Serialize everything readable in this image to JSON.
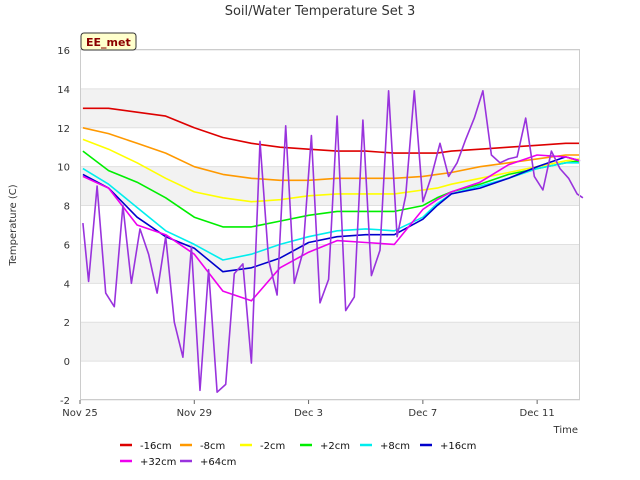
{
  "chart_data": {
    "type": "line",
    "title": "Soil/Water Temperature Set 3",
    "xlabel": "Time",
    "ylabel": "Temperature (C)",
    "badge": "EE_met",
    "x_ticks": [
      "Nov 25",
      "Nov 29",
      "Dec 3",
      "Dec 7",
      "Dec 11"
    ],
    "xlim": [
      "Nov 25",
      "Dec 13 12:00"
    ],
    "ylim": [
      -2,
      16
    ],
    "y_ticks": [
      -2,
      0,
      2,
      4,
      6,
      8,
      10,
      12,
      14,
      16
    ],
    "grid": "horizontal alternating bands",
    "legend_position": "bottom",
    "series": [
      {
        "name": "-16cm",
        "color": "#dd0000",
        "x": [
          0.1,
          1,
          2,
          3,
          4,
          5,
          6,
          7,
          8,
          9,
          10,
          11,
          12,
          12.5,
          13,
          14,
          15,
          16,
          17,
          17.5
        ],
        "y": [
          13.0,
          13.0,
          12.8,
          12.6,
          12.0,
          11.5,
          11.2,
          11.0,
          10.9,
          10.8,
          10.8,
          10.7,
          10.7,
          10.7,
          10.8,
          10.9,
          11.0,
          11.1,
          11.2,
          11.2
        ]
      },
      {
        "name": "-8cm",
        "color": "#ff9900",
        "x": [
          0.1,
          1,
          2,
          3,
          4,
          5,
          6,
          7,
          8,
          9,
          10,
          11,
          12,
          12.5,
          13,
          14,
          15,
          16,
          17,
          17.5
        ],
        "y": [
          12.0,
          11.7,
          11.2,
          10.7,
          10.0,
          9.6,
          9.4,
          9.3,
          9.3,
          9.4,
          9.4,
          9.4,
          9.5,
          9.6,
          9.7,
          10.0,
          10.2,
          10.4,
          10.6,
          10.6
        ]
      },
      {
        "name": "-2cm",
        "color": "#ffff00",
        "x": [
          0.1,
          1,
          2,
          3,
          4,
          5,
          6,
          7,
          8,
          9,
          10,
          11,
          12,
          12.5,
          13,
          14,
          15,
          16,
          17,
          17.5
        ],
        "y": [
          11.4,
          10.9,
          10.2,
          9.4,
          8.7,
          8.4,
          8.2,
          8.3,
          8.5,
          8.6,
          8.6,
          8.6,
          8.8,
          8.9,
          9.1,
          9.4,
          9.7,
          10.0,
          10.3,
          10.4
        ]
      },
      {
        "name": "+2cm",
        "color": "#00ee00",
        "x": [
          0.1,
          1,
          2,
          3,
          4,
          5,
          6,
          7,
          8,
          9,
          10,
          11,
          12,
          12.5,
          13,
          14,
          15,
          16,
          17,
          17.5
        ],
        "y": [
          10.8,
          9.8,
          9.2,
          8.4,
          7.4,
          6.9,
          6.9,
          7.2,
          7.5,
          7.7,
          7.7,
          7.7,
          8.0,
          8.4,
          8.7,
          9.1,
          9.6,
          9.9,
          10.2,
          10.3
        ]
      },
      {
        "name": "+8cm",
        "color": "#00eeee",
        "x": [
          0.1,
          1,
          2,
          3,
          4,
          5,
          6,
          7,
          8,
          9,
          10,
          11,
          12,
          12.5,
          13,
          14,
          15,
          16,
          17,
          17.5
        ],
        "y": [
          9.9,
          9.1,
          7.9,
          6.7,
          6.0,
          5.2,
          5.5,
          6.0,
          6.4,
          6.7,
          6.8,
          6.7,
          7.4,
          8.1,
          8.6,
          9.0,
          9.4,
          9.9,
          10.2,
          10.2
        ]
      },
      {
        "name": "+16cm",
        "color": "#0000cc",
        "x": [
          0.1,
          1,
          2,
          3,
          4,
          5,
          6,
          7,
          8,
          9,
          10,
          11,
          12,
          12.5,
          13,
          14,
          15,
          16,
          17,
          17.5
        ],
        "y": [
          9.6,
          8.9,
          7.4,
          6.4,
          5.8,
          4.6,
          4.8,
          5.3,
          6.1,
          6.4,
          6.5,
          6.5,
          7.3,
          8.0,
          8.6,
          8.9,
          9.4,
          10.0,
          10.5,
          10.3
        ]
      },
      {
        "name": "+32cm",
        "color": "#ee00ee",
        "x": [
          0.1,
          1,
          2,
          3,
          4,
          5,
          6,
          7,
          8,
          9,
          10,
          11,
          12,
          12.5,
          13,
          14,
          15,
          16,
          17,
          17.5
        ],
        "y": [
          9.5,
          8.9,
          7.0,
          6.5,
          5.5,
          3.6,
          3.1,
          4.8,
          5.6,
          6.2,
          6.1,
          6.0,
          7.8,
          8.3,
          8.7,
          9.2,
          10.1,
          10.6,
          10.5,
          10.3
        ]
      },
      {
        "name": "+64cm",
        "color": "#9933dd",
        "x": [
          0.1,
          0.3,
          0.6,
          0.9,
          1.2,
          1.5,
          1.8,
          2.1,
          2.4,
          2.7,
          3.0,
          3.3,
          3.6,
          3.9,
          4.2,
          4.5,
          4.8,
          5.1,
          5.4,
          5.7,
          6.0,
          6.3,
          6.6,
          6.9,
          7.2,
          7.5,
          7.8,
          8.1,
          8.4,
          8.7,
          9.0,
          9.3,
          9.6,
          9.9,
          10.2,
          10.5,
          10.8,
          11.1,
          11.4,
          11.7,
          12.0,
          12.3,
          12.6,
          12.9,
          13.2,
          13.5,
          13.8,
          14.1,
          14.4,
          14.7,
          15.0,
          15.3,
          15.6,
          15.9,
          16.2,
          16.5,
          16.8,
          17.1,
          17.4,
          17.6
        ],
        "y": [
          7.1,
          4.1,
          9.0,
          3.5,
          2.8,
          8.0,
          4.0,
          6.8,
          5.5,
          3.5,
          6.4,
          2.0,
          0.2,
          5.9,
          -1.5,
          4.7,
          -1.6,
          -1.2,
          4.5,
          5.0,
          -0.1,
          11.3,
          5.2,
          3.4,
          12.1,
          4.0,
          5.6,
          11.6,
          3.0,
          4.2,
          12.6,
          2.6,
          3.3,
          12.4,
          4.4,
          5.7,
          13.9,
          6.4,
          8.5,
          13.9,
          8.2,
          9.5,
          11.2,
          9.5,
          10.2,
          11.4,
          12.5,
          13.9,
          10.6,
          10.2,
          10.4,
          10.5,
          12.5,
          9.5,
          8.8,
          10.8,
          9.9,
          9.4,
          8.6,
          8.4
        ]
      }
    ]
  }
}
